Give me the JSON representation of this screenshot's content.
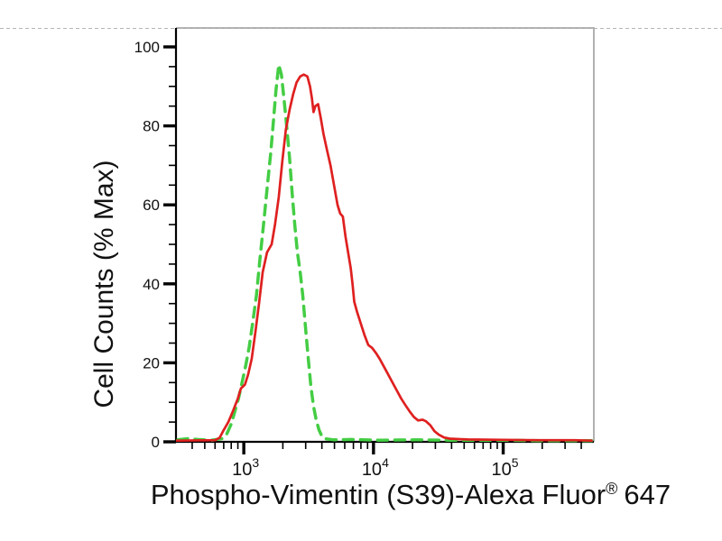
{
  "page": {
    "background": "#ffffff",
    "divider_color": "#b5b5b5"
  },
  "chart_data": {
    "type": "line",
    "title": "",
    "ylabel": "Cell Counts (% Max)",
    "xlabel_prefix": "Phospho-Vimentin (S39)-Alexa Fluor",
    "xlabel_registered": "®",
    "xlabel_suffix": "647",
    "x_scale": "log",
    "xlim": [
      300,
      500000
    ],
    "ylim": [
      0,
      100
    ],
    "grid": false,
    "legend": "none",
    "axis_color": "#000000",
    "frame_color": "#a9a9a9",
    "x_major_ticks": [
      {
        "value": 1000,
        "base": "10",
        "exp": "3"
      },
      {
        "value": 10000,
        "base": "10",
        "exp": "4"
      },
      {
        "value": 100000,
        "base": "10",
        "exp": "5"
      }
    ],
    "x_minor_multiples": [
      2,
      3,
      4,
      5,
      6,
      7,
      8,
      9
    ],
    "y_major_ticks": [
      {
        "value": 0,
        "label": "0"
      },
      {
        "value": 20,
        "label": "20"
      },
      {
        "value": 40,
        "label": "40"
      },
      {
        "value": 60,
        "label": "60"
      },
      {
        "value": 80,
        "label": "80"
      },
      {
        "value": 100,
        "label": "100"
      }
    ],
    "y_minor_step": 5,
    "series": [
      {
        "name": "green-dashed-control",
        "color": "#44cd44",
        "line_style": "dashed",
        "line_width": 3.5,
        "points": [
          [
            310,
            0.5
          ],
          [
            370,
            0.8
          ],
          [
            440,
            0.6
          ],
          [
            560,
            0.4
          ],
          [
            680,
            0.8
          ],
          [
            740,
            2
          ],
          [
            800,
            4.5
          ],
          [
            850,
            7.5
          ],
          [
            910,
            11
          ],
          [
            970,
            15
          ],
          [
            1030,
            19
          ],
          [
            1100,
            24
          ],
          [
            1170,
            30
          ],
          [
            1250,
            37
          ],
          [
            1330,
            46
          ],
          [
            1420,
            55
          ],
          [
            1510,
            64
          ],
          [
            1610,
            73
          ],
          [
            1690,
            81
          ],
          [
            1770,
            89
          ],
          [
            1860,
            95.5
          ],
          [
            1950,
            93
          ],
          [
            2040,
            87
          ],
          [
            2140,
            80
          ],
          [
            2250,
            72
          ],
          [
            2360,
            63
          ],
          [
            2470,
            55
          ],
          [
            2590,
            48
          ],
          [
            2720,
            43
          ],
          [
            2850,
            37
          ],
          [
            2990,
            29
          ],
          [
            3140,
            21
          ],
          [
            3290,
            14
          ],
          [
            3450,
            9
          ],
          [
            3620,
            5.5
          ],
          [
            3800,
            3
          ],
          [
            3990,
            1.5
          ],
          [
            4180,
            0.8
          ],
          [
            4920,
            0.5
          ],
          [
            6760,
            0.6
          ],
          [
            11000,
            0.4
          ],
          [
            21500,
            0.5
          ],
          [
            38800,
            0.4
          ],
          [
            100000,
            0.4
          ],
          [
            190000,
            0.3
          ],
          [
            420000,
            0.3
          ],
          [
            480000,
            0.3
          ]
        ]
      },
      {
        "name": "red-solid-stained",
        "color": "#df2020",
        "line_style": "solid",
        "line_width": 2.7,
        "points": [
          [
            305,
            0.3
          ],
          [
            600,
            0.4
          ],
          [
            650,
            1
          ],
          [
            700,
            3
          ],
          [
            760,
            5
          ],
          [
            830,
            8
          ],
          [
            900,
            11
          ],
          [
            950,
            13.5
          ],
          [
            1020,
            14.5
          ],
          [
            1080,
            17
          ],
          [
            1150,
            21
          ],
          [
            1230,
            28
          ],
          [
            1310,
            35
          ],
          [
            1400,
            43
          ],
          [
            1510,
            48
          ],
          [
            1640,
            50
          ],
          [
            1740,
            55
          ],
          [
            1860,
            62
          ],
          [
            1980,
            71
          ],
          [
            2110,
            79
          ],
          [
            2250,
            84
          ],
          [
            2400,
            88
          ],
          [
            2550,
            91
          ],
          [
            2720,
            92.5
          ],
          [
            2900,
            93
          ],
          [
            3090,
            92.5
          ],
          [
            3240,
            90
          ],
          [
            3350,
            87
          ],
          [
            3450,
            83.5
          ],
          [
            3560,
            85
          ],
          [
            3740,
            85.5
          ],
          [
            3920,
            82
          ],
          [
            4110,
            78
          ],
          [
            4370,
            74
          ],
          [
            4660,
            70
          ],
          [
            4960,
            65
          ],
          [
            5280,
            60
          ],
          [
            5530,
            57.8
          ],
          [
            5800,
            57
          ],
          [
            6080,
            52
          ],
          [
            6370,
            48
          ],
          [
            6670,
            44
          ],
          [
            6890,
            40
          ],
          [
            7100,
            35.5
          ],
          [
            7450,
            33
          ],
          [
            7970,
            30
          ],
          [
            8520,
            27
          ],
          [
            9120,
            24.5
          ],
          [
            9750,
            23.8
          ],
          [
            10440,
            22.5
          ],
          [
            11160,
            21
          ],
          [
            12050,
            19
          ],
          [
            13000,
            17
          ],
          [
            14020,
            15
          ],
          [
            15130,
            13
          ],
          [
            16320,
            11
          ],
          [
            17610,
            9.3
          ],
          [
            19000,
            7.7
          ],
          [
            20500,
            6.3
          ],
          [
            22100,
            5.4
          ],
          [
            23900,
            5.6
          ],
          [
            25400,
            5.2
          ],
          [
            27400,
            4.2
          ],
          [
            29500,
            2.7
          ],
          [
            31900,
            1.8
          ],
          [
            35000,
            1.1
          ],
          [
            38800,
            0.8
          ],
          [
            53200,
            0.6
          ],
          [
            100000,
            0.5
          ],
          [
            190000,
            0.4
          ],
          [
            355000,
            0.4
          ],
          [
            480000,
            0.3
          ]
        ]
      }
    ]
  }
}
